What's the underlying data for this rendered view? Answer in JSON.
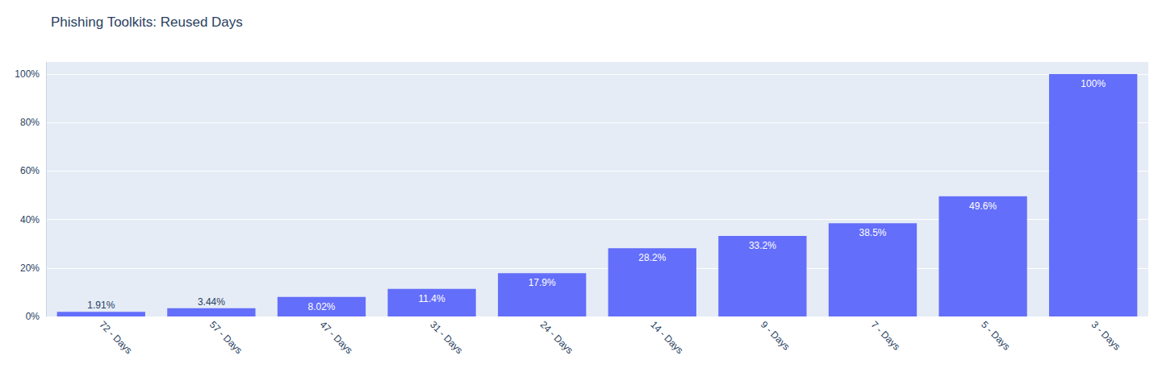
{
  "chart_data": {
    "type": "bar",
    "title": "Phishing Toolkits: Reused Days",
    "categories": [
      "72 - Days",
      "57 - Days",
      "47 - Days",
      "31 - Days",
      "24 - Days",
      "14 - Days",
      "9 - Days",
      "7 - Days",
      "5 - Days",
      "3 - Days"
    ],
    "values": [
      1.91,
      3.44,
      8.02,
      11.4,
      17.9,
      28.2,
      33.2,
      38.5,
      49.6,
      100
    ],
    "value_labels": [
      "1.91%",
      "3.44%",
      "8.02%",
      "11.4%",
      "17.9%",
      "28.2%",
      "33.2%",
      "38.5%",
      "49.6%",
      "100%"
    ],
    "color": "#636efa",
    "ylim": [
      0,
      105
    ],
    "yticks": [
      {
        "value": 0,
        "label": "0%"
      },
      {
        "value": 20,
        "label": "20%"
      },
      {
        "value": 40,
        "label": "40%"
      },
      {
        "value": 60,
        "label": "60%"
      },
      {
        "value": 80,
        "label": "80%"
      },
      {
        "value": 100,
        "label": "100%"
      }
    ],
    "grid": true,
    "data_labels": true
  }
}
